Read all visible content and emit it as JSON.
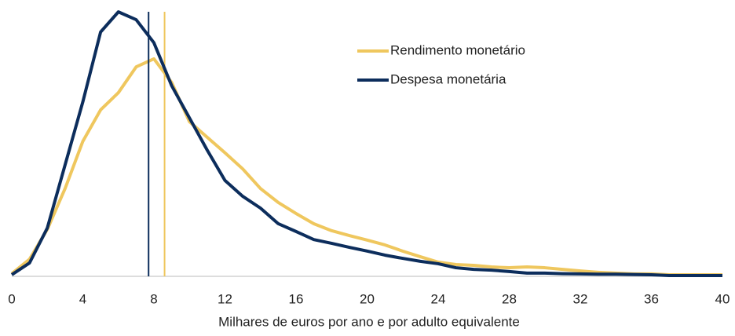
{
  "chart_data": {
    "type": "line",
    "xlabel": "Milhares de euros por ano e por adulto equivalente",
    "x": [
      0,
      1,
      2,
      3,
      4,
      5,
      6,
      7,
      8,
      9,
      10,
      11,
      12,
      13,
      14,
      15,
      16,
      17,
      18,
      19,
      20,
      21,
      22,
      23,
      24,
      25,
      26,
      27,
      28,
      29,
      30,
      31,
      32,
      33,
      34,
      35,
      36,
      37,
      38,
      39,
      40
    ],
    "series": [
      {
        "name": "Rendimento monetário",
        "color": "#efc75e",
        "vline": 8.6,
        "values": [
          1,
          6.4,
          17.5,
          32.7,
          50.3,
          62,
          68.4,
          78,
          81,
          72.2,
          57.6,
          51.8,
          46,
          40,
          32.7,
          27.5,
          23.4,
          19.6,
          17,
          15.2,
          13.5,
          11.7,
          9.4,
          7.3,
          5.3,
          4.4,
          4.1,
          3.5,
          3.2,
          3.5,
          3.2,
          2.6,
          2,
          1.5,
          1.2,
          0.9,
          0.9,
          0.6,
          0.6,
          0.6,
          0.6
        ]
      },
      {
        "name": "Despesa monetária",
        "color": "#0c2d5c",
        "vline": 7.7,
        "values": [
          0.6,
          5,
          18,
          41.5,
          65,
          91,
          98.5,
          95.6,
          87,
          71,
          59,
          47,
          35.7,
          29.8,
          25.4,
          19.6,
          16.7,
          13.7,
          12.3,
          10.8,
          9.4,
          7.9,
          6.7,
          5.6,
          4.7,
          3.2,
          2.6,
          2.3,
          1.8,
          1.2,
          1.2,
          1,
          0.9,
          0.8,
          0.8,
          0.7,
          0.6,
          0.3,
          0.3,
          0.3,
          0.3
        ]
      }
    ],
    "xlim": [
      0,
      40
    ],
    "xticks": [
      0,
      4,
      8,
      12,
      16,
      20,
      24,
      28,
      32,
      36,
      40
    ],
    "ylim": [
      0,
      100
    ]
  }
}
